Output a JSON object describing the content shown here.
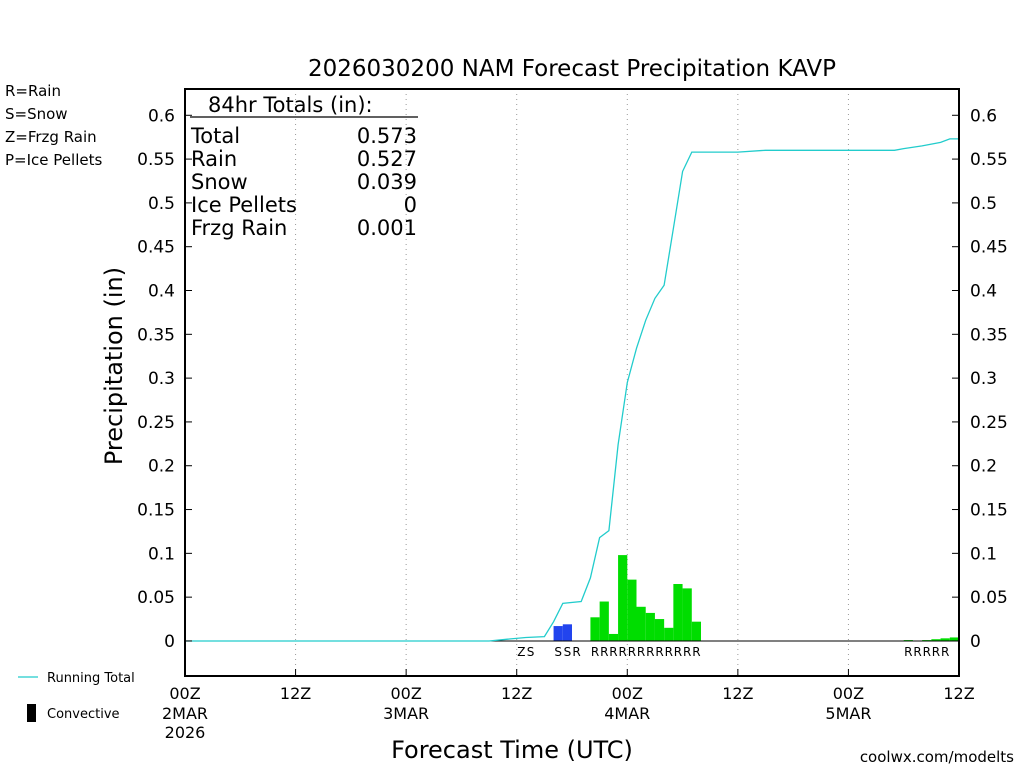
{
  "chart_data": {
    "type": "bar",
    "title": "2026030200 NAM Forecast Precipitation KAVP",
    "xlabel": "Forecast Time (UTC)",
    "ylabel": "Precipitation (in)",
    "ylim": [
      -0.04,
      0.63
    ],
    "yticks": [
      0,
      0.05,
      0.1,
      0.15,
      0.2,
      0.25,
      0.3,
      0.35,
      0.4,
      0.45,
      0.5,
      0.55,
      0.6
    ],
    "ytick_labels": [
      "0",
      "0.05",
      "0.1",
      "0.15",
      "0.2",
      "0.25",
      "0.3",
      "0.35",
      "0.4",
      "0.45",
      "0.5",
      "0.55",
      "0.6"
    ],
    "xlim_hours": [
      0,
      84
    ],
    "grid": "vertical dotted at 12-hour intervals",
    "xticks": [
      {
        "h": 0,
        "line1": "00Z",
        "line2": "2MAR",
        "line3": "2026"
      },
      {
        "h": 12,
        "line1": "12Z",
        "line2": "",
        "line3": ""
      },
      {
        "h": 24,
        "line1": "00Z",
        "line2": "3MAR",
        "line3": ""
      },
      {
        "h": 36,
        "line1": "12Z",
        "line2": "",
        "line3": ""
      },
      {
        "h": 48,
        "line1": "00Z",
        "line2": "4MAR",
        "line3": ""
      },
      {
        "h": 60,
        "line1": "12Z",
        "line2": "",
        "line3": ""
      },
      {
        "h": 72,
        "line1": "00Z",
        "line2": "5MAR",
        "line3": ""
      },
      {
        "h": 84,
        "line1": "12Z",
        "line2": "",
        "line3": ""
      }
    ],
    "legend": {
      "types": [
        {
          "label": "R=Rain",
          "color": "#00dd00"
        },
        {
          "label": "S=Snow",
          "color": "#3355ee"
        },
        {
          "label": "Z=Frzg Rain",
          "color": "#ee8822"
        },
        {
          "label": "P=Ice Pellets",
          "color": "#ee2288"
        }
      ],
      "running_total_label": "Running Total",
      "convective_label": "Convective"
    },
    "totals_box": {
      "heading": "84hr Totals (in):",
      "rows": [
        {
          "label": "Total",
          "value": "0.573"
        },
        {
          "label": "Rain",
          "value": "0.527"
        },
        {
          "label": "Snow",
          "value": "0.039"
        },
        {
          "label": "Ice Pellets",
          "value": "0"
        },
        {
          "label": "Frzg Rain",
          "value": "0.001"
        }
      ]
    },
    "series": [
      {
        "name": "Hourly precipitation",
        "bars": [
          {
            "h": 40,
            "value": 0.017,
            "type": "S"
          },
          {
            "h": 41,
            "value": 0.019,
            "type": "S"
          },
          {
            "h": 44,
            "value": 0.027,
            "type": "R"
          },
          {
            "h": 45,
            "value": 0.045,
            "type": "R"
          },
          {
            "h": 46,
            "value": 0.008,
            "type": "R"
          },
          {
            "h": 47,
            "value": 0.098,
            "type": "R"
          },
          {
            "h": 48,
            "value": 0.07,
            "type": "R"
          },
          {
            "h": 49,
            "value": 0.039,
            "type": "R"
          },
          {
            "h": 50,
            "value": 0.032,
            "type": "R"
          },
          {
            "h": 51,
            "value": 0.025,
            "type": "R"
          },
          {
            "h": 52,
            "value": 0.015,
            "type": "R"
          },
          {
            "h": 53,
            "value": 0.065,
            "type": "R"
          },
          {
            "h": 54,
            "value": 0.06,
            "type": "R"
          },
          {
            "h": 55,
            "value": 0.022,
            "type": "R"
          },
          {
            "h": 78,
            "value": 0.001,
            "type": "R"
          },
          {
            "h": 80,
            "value": 0.001,
            "type": "R"
          },
          {
            "h": 81,
            "value": 0.002,
            "type": "R"
          },
          {
            "h": 82,
            "value": 0.003,
            "type": "R"
          },
          {
            "h": 83,
            "value": 0.004,
            "type": "R"
          }
        ]
      },
      {
        "name": "Running Total",
        "points": [
          [
            0,
            0
          ],
          [
            33,
            0
          ],
          [
            35,
            0.002
          ],
          [
            37,
            0.004
          ],
          [
            39,
            0.005
          ],
          [
            40,
            0.022
          ],
          [
            41,
            0.043
          ],
          [
            43,
            0.045
          ],
          [
            44,
            0.072
          ],
          [
            45,
            0.118
          ],
          [
            46,
            0.126
          ],
          [
            47,
            0.224
          ],
          [
            48,
            0.295
          ],
          [
            49,
            0.334
          ],
          [
            50,
            0.366
          ],
          [
            51,
            0.391
          ],
          [
            52,
            0.406
          ],
          [
            53,
            0.471
          ],
          [
            54,
            0.536
          ],
          [
            55,
            0.558
          ],
          [
            60,
            0.558
          ],
          [
            63,
            0.56
          ],
          [
            72,
            0.56
          ],
          [
            77,
            0.56
          ],
          [
            78,
            0.562
          ],
          [
            80,
            0.565
          ],
          [
            82,
            0.569
          ],
          [
            83,
            0.573
          ],
          [
            84,
            0.573
          ]
        ]
      }
    ],
    "type_letters": [
      {
        "h": 36,
        "letter": "Z"
      },
      {
        "h": 37,
        "letter": "S"
      },
      {
        "h": 40,
        "letter": "S"
      },
      {
        "h": 41,
        "letter": "S"
      },
      {
        "h": 42,
        "letter": "R"
      },
      {
        "h": 44,
        "letter": "R"
      },
      {
        "h": 45,
        "letter": "R"
      },
      {
        "h": 46,
        "letter": "R"
      },
      {
        "h": 47,
        "letter": "R"
      },
      {
        "h": 48,
        "letter": "R"
      },
      {
        "h": 49,
        "letter": "R"
      },
      {
        "h": 50,
        "letter": "R"
      },
      {
        "h": 51,
        "letter": "R"
      },
      {
        "h": 52,
        "letter": "R"
      },
      {
        "h": 53,
        "letter": "R"
      },
      {
        "h": 54,
        "letter": "R"
      },
      {
        "h": 55,
        "letter": "R"
      },
      {
        "h": 78,
        "letter": "R"
      },
      {
        "h": 79,
        "letter": "R"
      },
      {
        "h": 80,
        "letter": "R"
      },
      {
        "h": 81,
        "letter": "R"
      },
      {
        "h": 82,
        "letter": "R"
      }
    ],
    "colors": {
      "rain": "#00dd00",
      "snow": "#2244ee",
      "freezing_rain": "#ee8822",
      "ice_pellets": "#ee2288",
      "running_total": "#22cccc",
      "watermark": "#cc2222",
      "grid": "#999999"
    },
    "watermark": "coolwx.com/modelts"
  }
}
